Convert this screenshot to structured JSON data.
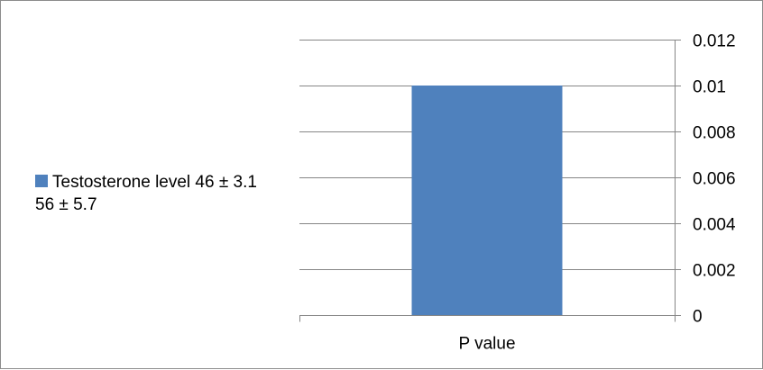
{
  "chart_data": {
    "type": "bar",
    "categories": [
      "P value"
    ],
    "series": [
      {
        "name": "Testosterone level 46 ± 3.1  56 ± 5.7",
        "values": [
          0.01
        ],
        "color": "#4F81BD"
      }
    ],
    "title": "",
    "xlabel": "",
    "ylabel": "",
    "ylim": [
      0,
      0.012
    ],
    "yticks": [
      0,
      0.002,
      0.004,
      0.006,
      0.008,
      0.01,
      0.012
    ],
    "ytick_labels": [
      "0",
      "0.002",
      "0.004",
      "0.006",
      "0.008",
      "0.01",
      "0.012"
    ],
    "y_axis_side": "right",
    "grid": true,
    "legend_position": "left",
    "gridline_color": "#868686"
  }
}
